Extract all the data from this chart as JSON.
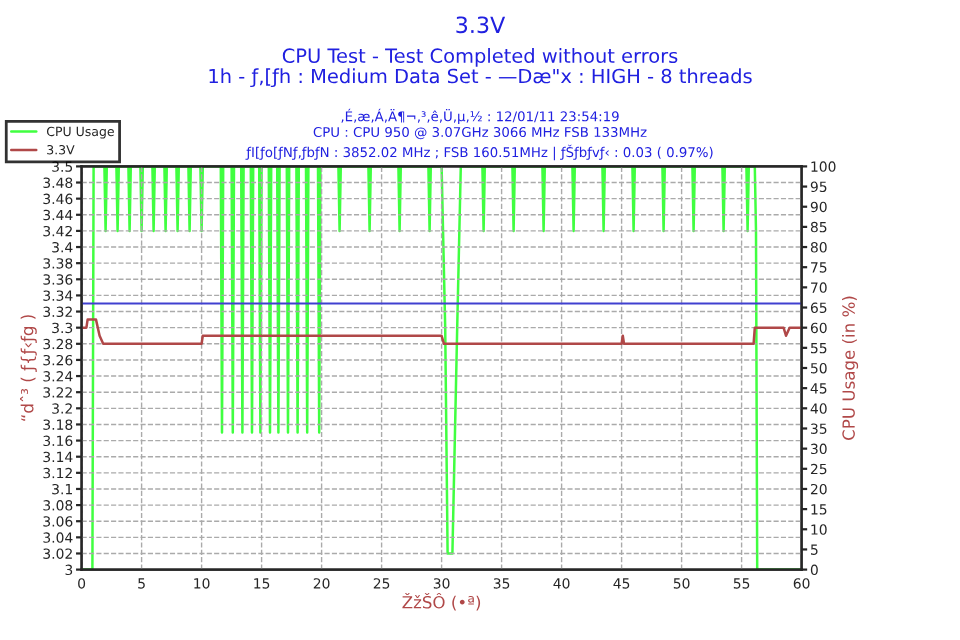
{
  "chart_data": {
    "type": "line",
    "title": "3.3V",
    "subtitle": "CPU Test - Test Completed without errors\n1h - ƒ‚[ƒh : Medium Data Set - —Dæ\"x : HIGH - 8 threads",
    "annotations": [
      "‚É‚æ‚Á‚Ä¶¬‚³‚ê‚Ü‚µ‚½ : 12/01/11 23:54:19",
      "CPU : CPU 950 @ 3.07GHz 3066 MHz FSB 133MHz",
      "ƒI[ƒo[ƒNƒ‚ƒbƒN : 3852.02 MHz ; FSB 160.51MHz | ƒŠƒbƒvƒ‹ : 0.03 ( 0.97%)"
    ],
    "xlabel": "ŽžŠÔ (•ª)",
    "ylabel": "“dˆ³ ( ƒ{ƒ‹ƒg )",
    "y2label": "CPU Usage (in %)",
    "xlim": [
      0,
      60
    ],
    "xticks": [
      0,
      5,
      10,
      15,
      20,
      25,
      30,
      35,
      40,
      45,
      50,
      55,
      60
    ],
    "ylim": [
      3,
      3.5
    ],
    "yticks": [
      3,
      3.02,
      3.04,
      3.06,
      3.08,
      3.1,
      3.12,
      3.14,
      3.16,
      3.18,
      3.2,
      3.22,
      3.24,
      3.26,
      3.28,
      3.3,
      3.32,
      3.34,
      3.36,
      3.38,
      3.4,
      3.42,
      3.44,
      3.46,
      3.48,
      3.5
    ],
    "y2lim": [
      0,
      100
    ],
    "y2ticks": [
      0,
      5,
      10,
      15,
      20,
      25,
      30,
      35,
      40,
      45,
      50,
      55,
      60,
      65,
      70,
      75,
      80,
      85,
      90,
      95,
      100
    ],
    "grid": true,
    "legend": "top left",
    "marker": "none",
    "line_style": "solid",
    "ref_lines": [
      {
        "axis": "y",
        "value": 3.33,
        "color": "#4040d0"
      }
    ],
    "series": [
      {
        "name": "CPU Usage",
        "color": "#40ff40",
        "axis": "y2",
        "x": [
          0,
          0.9,
          1.0,
          1.2,
          1.9,
          2.0,
          2.1,
          2.9,
          3.0,
          3.1,
          3.9,
          4.0,
          4.1,
          4.9,
          5.0,
          5.1,
          5.9,
          6.0,
          6.1,
          6.9,
          7.0,
          7.1,
          7.9,
          8.0,
          8.1,
          8.9,
          9.0,
          9.1,
          9.9,
          10.0,
          10.1,
          11.6,
          11.7,
          11.8,
          12.5,
          12.6,
          12.7,
          13.3,
          13.4,
          13.5,
          14.1,
          14.2,
          14.3,
          14.8,
          14.9,
          15.0,
          15.6,
          15.7,
          15.8,
          16.3,
          16.4,
          16.5,
          17.1,
          17.2,
          17.3,
          17.9,
          18.0,
          18.1,
          18.7,
          18.8,
          18.9,
          19.7,
          19.8,
          19.9,
          21.4,
          21.5,
          21.6,
          23.9,
          24.0,
          24.1,
          26.4,
          26.5,
          26.6,
          28.9,
          29.0,
          29.1,
          30.0,
          30.3,
          30.5,
          30.9,
          31.3,
          31.6,
          33.4,
          33.5,
          33.6,
          35.9,
          36.0,
          36.1,
          38.4,
          38.5,
          38.6,
          40.9,
          41.0,
          41.1,
          43.4,
          43.5,
          43.6,
          45.9,
          46.0,
          46.1,
          48.4,
          48.5,
          48.6,
          50.9,
          51.0,
          51.1,
          53.4,
          53.5,
          53.6,
          55.4,
          55.5,
          55.6,
          56.1,
          56.2,
          56.3,
          60
        ],
        "values": [
          0,
          0,
          100,
          100,
          100,
          84,
          100,
          100,
          84,
          100,
          100,
          84,
          100,
          100,
          84,
          100,
          100,
          84,
          100,
          100,
          84,
          100,
          100,
          84,
          100,
          100,
          84,
          100,
          100,
          84,
          100,
          100,
          34,
          100,
          100,
          34,
          100,
          100,
          34,
          100,
          100,
          34,
          100,
          100,
          34,
          100,
          100,
          34,
          100,
          100,
          34,
          100,
          100,
          34,
          100,
          100,
          34,
          100,
          100,
          34,
          100,
          100,
          34,
          100,
          100,
          84,
          100,
          100,
          84,
          100,
          100,
          84,
          100,
          100,
          84,
          100,
          100,
          60,
          4,
          4,
          60,
          100,
          100,
          84,
          100,
          100,
          84,
          100,
          100,
          84,
          100,
          100,
          84,
          100,
          100,
          84,
          100,
          100,
          84,
          100,
          100,
          84,
          100,
          100,
          84,
          100,
          100,
          84,
          100,
          100,
          84,
          100,
          100,
          84,
          0,
          0
        ]
      },
      {
        "name": "3.3V",
        "color": "#b04848",
        "axis": "y",
        "x": [
          0,
          0.4,
          0.5,
          1.2,
          1.5,
          1.8,
          10.0,
          10.1,
          30.0,
          30.2,
          45.0,
          45.1,
          45.2,
          56.0,
          56.1,
          58.5,
          58.7,
          59,
          60
        ],
        "values": [
          3.3,
          3.3,
          3.31,
          3.31,
          3.29,
          3.28,
          3.28,
          3.29,
          3.29,
          3.28,
          3.28,
          3.29,
          3.28,
          3.28,
          3.3,
          3.3,
          3.29,
          3.3,
          3.3
        ]
      }
    ]
  }
}
